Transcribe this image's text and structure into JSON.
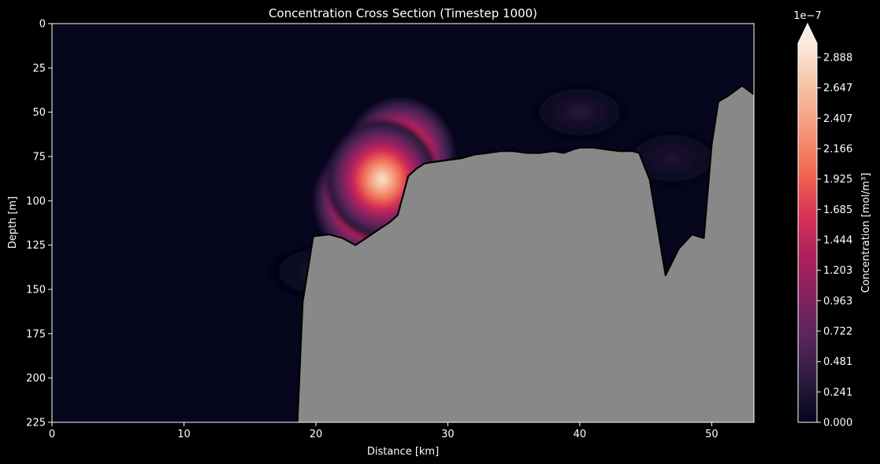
{
  "chart_data": {
    "type": "heatmap",
    "title": "Concentration Cross Section (Timestep 1000)",
    "xlabel": "Distance [km]",
    "ylabel": "Depth [m]",
    "xlim": [
      0,
      53.2
    ],
    "ylim": [
      225,
      0
    ],
    "x_ticks": [
      0,
      10,
      20,
      30,
      40,
      50
    ],
    "y_ticks": [
      0,
      25,
      50,
      75,
      100,
      125,
      150,
      175,
      200,
      225
    ],
    "bathymetry": {
      "distance_km": [
        18.6,
        19.0,
        19.8,
        21.0,
        22.0,
        23.0,
        24.0,
        25.0,
        25.6,
        26.2,
        27.0,
        27.6,
        28.2,
        29.0,
        30.0,
        31.0,
        32.0,
        33.0,
        34.0,
        35.0,
        36.0,
        37.0,
        38.0,
        38.8,
        39.5,
        40.0,
        41.0,
        42.0,
        43.0,
        44.0,
        44.5,
        45.3,
        46.5,
        47.5,
        48.5,
        49.4,
        50.0,
        50.5,
        51.2,
        52.3,
        53.2
      ],
      "depth_m": [
        225,
        157,
        120,
        119,
        121,
        125,
        120,
        115,
        112,
        108,
        86,
        82,
        79,
        78,
        77,
        76,
        74,
        73,
        72,
        72,
        73,
        73,
        72,
        73,
        71,
        70,
        70,
        71,
        72,
        72,
        73,
        88,
        142,
        127,
        119,
        121,
        68,
        44,
        41,
        35,
        40
      ],
      "fill_color": "#888888"
    },
    "plumes": [
      {
        "x_km": 24.0,
        "depth_m": 100,
        "peak": 3e-07
      },
      {
        "x_km": 26.4,
        "depth_m": 75,
        "peak": 2.8e-07
      },
      {
        "x_km": 25.0,
        "depth_m": 88,
        "peak": 2.9e-07
      },
      {
        "x_km": 40.0,
        "depth_m": 50,
        "peak": 3e-08
      },
      {
        "x_km": 47.0,
        "depth_m": 76,
        "peak": 2.5e-08
      },
      {
        "x_km": 20.0,
        "depth_m": 140,
        "peak": 2e-08
      }
    ],
    "colorbar": {
      "label": "Concentration [mol/m³]",
      "offset_text": "1e−7",
      "tick_labels": [
        "0.000",
        "0.241",
        "0.481",
        "0.722",
        "0.963",
        "1.203",
        "1.444",
        "1.685",
        "1.925",
        "2.166",
        "2.407",
        "2.647",
        "2.888"
      ],
      "tick_values": [
        0,
        0.241,
        0.481,
        0.722,
        0.963,
        1.203,
        1.444,
        1.685,
        1.925,
        2.166,
        2.407,
        2.647,
        2.888
      ],
      "vmax": 3.0,
      "extend": "max",
      "colormap_stops": [
        "#03051a",
        "#2b1b3f",
        "#57265c",
        "#84225f",
        "#b1205d",
        "#db3553",
        "#f16b52",
        "#f5997d",
        "#f7c3a6",
        "#faebdd"
      ]
    }
  }
}
